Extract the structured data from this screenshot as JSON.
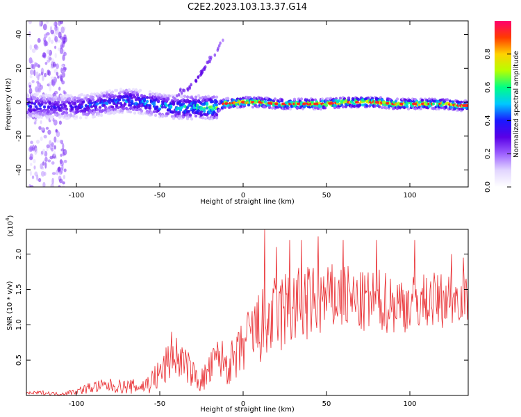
{
  "figure_title": "C2E2.2023.103.13.37.G14",
  "colors": {
    "snr_line": "#e8262a",
    "colormap": [
      "#ffffff",
      "#e2d6ff",
      "#9d60ff",
      "#5a00e6",
      "#1a17ff",
      "#00c8ff",
      "#00ff84",
      "#b6ff00",
      "#ffd200",
      "#ff3b00",
      "#ff006e"
    ]
  },
  "chart_data": [
    {
      "type": "heatmap",
      "title": "C2E2.2023.103.13.37.G14",
      "xlabel": "Height of straight line (km)",
      "ylabel": "Frequency (Hz)",
      "xlim": [
        -130,
        135
      ],
      "ylim": [
        -50,
        48
      ],
      "x_ticks": [
        -100,
        -50,
        0,
        50,
        100
      ],
      "x_tick_labels": [
        "-100",
        "-50",
        "0",
        "50",
        "100"
      ],
      "y_ticks": [
        -40,
        -20,
        0,
        20,
        40
      ],
      "y_tick_labels": [
        "-40",
        "-20",
        "0",
        "20",
        "40"
      ],
      "colorbar": {
        "label": "Normalized spectral amplitude",
        "range": [
          0,
          1
        ],
        "ticks": [
          0,
          0.2,
          0.4,
          0.6,
          0.8
        ],
        "tick_labels": [
          "0.0",
          "0.2",
          "0.4",
          "0.6",
          "0.8"
        ]
      },
      "ridge": {
        "x": [
          -130,
          -110,
          -90,
          -80,
          -70,
          -60,
          -50,
          -40,
          -30,
          -20,
          -15,
          -12,
          0,
          10,
          20,
          30,
          40,
          50,
          60,
          70,
          80,
          90,
          100,
          110,
          120,
          130,
          135
        ],
        "y": [
          -2,
          -3,
          -2,
          0,
          1,
          0,
          -2,
          -3,
          -3,
          -3,
          -3,
          -1,
          0,
          0,
          -1,
          -1,
          -1,
          -1,
          0,
          0,
          0,
          -1,
          -1,
          -1,
          -1,
          -2,
          -2
        ],
        "amplitude": [
          0.45,
          0.35,
          0.45,
          0.45,
          0.5,
          0.5,
          0.55,
          0.55,
          0.6,
          0.7,
          0.7,
          0.8,
          0.9,
          0.85,
          0.8,
          0.8,
          0.85,
          0.85,
          0.9,
          0.9,
          0.9,
          0.85,
          0.85,
          0.85,
          0.85,
          0.8,
          0.8
        ]
      },
      "harmonic_streak": {
        "x": [
          -40,
          -30,
          -25,
          -20,
          -15,
          -12
        ],
        "y": [
          5,
          10,
          17,
          25,
          32,
          36
        ],
        "amplitude": [
          0.25,
          0.3,
          0.3,
          0.25,
          0.25,
          0.2
        ]
      },
      "grid": false
    },
    {
      "type": "line",
      "xlabel": "Height of straight line (km)",
      "ylabel": "SNR (10 * v/v)",
      "y_multiplier_label": "(x10",
      "y_multiplier_exponent": "4",
      "xlim": [
        -130,
        135
      ],
      "ylim": [
        0,
        2.35
      ],
      "x_ticks": [
        -100,
        -50,
        0,
        50,
        100
      ],
      "x_tick_labels": [
        "-100",
        "-50",
        "0",
        "50",
        "100"
      ],
      "y_ticks": [
        0.5,
        1.0,
        1.5,
        2.0
      ],
      "y_tick_labels": [
        "0.5",
        "1.0",
        "1.5",
        "2.0"
      ],
      "series": [
        {
          "x": [
            -130,
            -120,
            -110,
            -100,
            -90,
            -80,
            -70,
            -60,
            -55,
            -50,
            -45,
            -40,
            -35,
            -30,
            -25,
            -20,
            -15,
            -10,
            -5,
            0,
            5,
            10,
            15,
            20,
            25,
            30,
            40,
            50,
            60,
            70,
            80,
            90,
            100,
            110,
            120,
            130,
            135
          ],
          "values": [
            0.03,
            0.04,
            0.02,
            0.06,
            0.12,
            0.14,
            0.12,
            0.13,
            0.2,
            0.3,
            0.45,
            0.55,
            0.45,
            0.3,
            0.2,
            0.35,
            0.55,
            0.45,
            0.45,
            0.7,
            0.85,
            0.95,
            1.05,
            1.1,
            1.2,
            1.25,
            1.3,
            1.35,
            1.4,
            1.3,
            1.35,
            1.3,
            1.3,
            1.35,
            1.35,
            1.4,
            1.35
          ],
          "peaks": {
            "x": [
              -43,
              13,
              20,
              28,
              35,
              45,
              60,
              80,
              103,
              125,
              132
            ],
            "values": [
              0.9,
              2.35,
              2.1,
              2.2,
              2.2,
              2.25,
              2.2,
              2.2,
              2.2,
              2.0,
              1.95
            ]
          },
          "noise_amplitude": [
            0.02,
            0.03,
            0.02,
            0.05,
            0.09,
            0.1,
            0.1,
            0.12,
            0.18,
            0.25,
            0.3,
            0.3,
            0.25,
            0.2,
            0.18,
            0.25,
            0.3,
            0.3,
            0.35,
            0.4,
            0.5,
            0.55,
            0.6,
            0.6,
            0.6,
            0.6,
            0.55,
            0.5,
            0.5,
            0.45,
            0.45,
            0.45,
            0.4,
            0.4,
            0.4,
            0.35,
            0.3
          ]
        }
      ],
      "grid": false
    }
  ]
}
